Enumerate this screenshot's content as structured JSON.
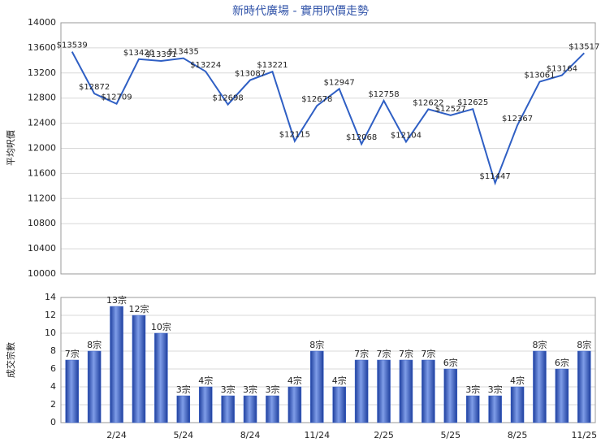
{
  "chart_data": [
    {
      "type": "line",
      "title": "新時代廣場 - 實用呎價走勢",
      "y_label": "平均呎價",
      "color": "#2f5fc4",
      "grid": true,
      "values": [
        13539,
        12872,
        12709,
        13420,
        13391,
        13435,
        13224,
        12698,
        13087,
        13221,
        12115,
        12678,
        12947,
        12068,
        12758,
        12104,
        12622,
        12527,
        12625,
        11447,
        12367,
        13061,
        13164,
        13517
      ],
      "value_labels": [
        "$13539",
        "$12872",
        "$12709",
        "$13420",
        "$13391",
        "$13435",
        "$13224",
        "$12698",
        "$13087",
        "$13221",
        "$12115",
        "$12678",
        "$12947",
        "$12068",
        "$12758",
        "$12104",
        "$12622",
        "$12527",
        "$12625",
        "$11447",
        "$12367",
        "$13061",
        "$13164",
        "$13517"
      ],
      "ylim": [
        10000,
        14000
      ],
      "yticks": [
        10000,
        10400,
        10800,
        11200,
        11600,
        12000,
        12400,
        12800,
        13200,
        13600,
        14000
      ]
    },
    {
      "type": "bar",
      "y_label": "成交宗數",
      "color": "#3a62c8",
      "grid": true,
      "categories": [
        null,
        null,
        "2/24",
        null,
        null,
        "5/24",
        null,
        null,
        "8/24",
        null,
        null,
        "11/24",
        null,
        null,
        "2/25",
        null,
        null,
        "5/25",
        null,
        null,
        "8/25",
        null,
        null,
        "11/25"
      ],
      "values": [
        7,
        8,
        13,
        12,
        10,
        3,
        4,
        3,
        3,
        3,
        4,
        8,
        4,
        7,
        7,
        7,
        7,
        6,
        3,
        3,
        4,
        8,
        6,
        8
      ],
      "value_labels": [
        "7宗",
        "8宗",
        "13宗",
        "12宗",
        "10宗",
        "3宗",
        "4宗",
        "3宗",
        "3宗",
        "3宗",
        "4宗",
        "8宗",
        "4宗",
        "7宗",
        "7宗",
        "7宗",
        "7宗",
        "6宗",
        "3宗",
        "3宗",
        "4宗",
        "8宗",
        "6宗",
        "8宗"
      ],
      "ylim": [
        0,
        14
      ],
      "yticks": [
        0,
        2,
        4,
        6,
        8,
        10,
        12,
        14
      ]
    }
  ]
}
